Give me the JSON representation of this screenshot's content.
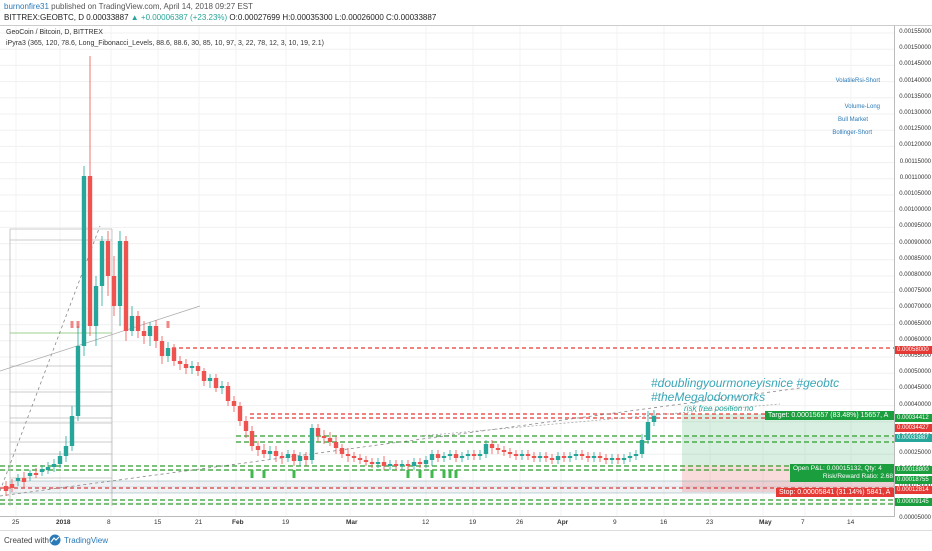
{
  "header": {
    "user": "burnonfire31",
    "published": "published on TradingView.com, April 14, 2018 09:27 EST",
    "symbol_line": "BITTREX:GEOBTC, D",
    "close": "0.00033887",
    "change": "▲ +0.00006387 (+23.23%)",
    "ohlc": "O:0.00027699 H:0.00035300 L:0.00026000 C:0.00033887"
  },
  "chart": {
    "title": "GeoCoin / Bitcoin, D, BITTREX",
    "indicator": "iPyra3 (365, 120, 78.6, Long_Fibonacci_Levels, 88.6, 88.6, 30, 85, 10, 97, 3, 22, 78, 12, 3, 10, 19, 2.1)",
    "legend": [
      "VolatileRsi-Short",
      "Volume-Long",
      "Bull Market",
      "Bollinger-Short"
    ],
    "hashtag1": "#doublingyourmoneyisnice #geobtc",
    "hashtag2": "#theMegalodonworks",
    "riskfree": "risk free position no",
    "target": "Target: 0.00015657 (83.48%) 15657, A",
    "pnl1": "Open P&L: 0.00015132, Qty: 4",
    "pnl2": "Risk/Reward Ratio: 2.68",
    "stop": "Stop: 0.00005841 (31.14%) 5841, A",
    "colors": {
      "up": "#26a69a",
      "down": "#ef5350",
      "accent": "#2a7ab8"
    }
  },
  "price_axis": {
    "ticks": [
      "0.00155000",
      "0.00150000",
      "0.00145000",
      "0.00140000",
      "0.00135000",
      "0.00130000",
      "0.00125000",
      "0.00120000",
      "0.00115000",
      "0.00110000",
      "0.00105000",
      "0.00100000",
      "0.00095000",
      "0.00090000",
      "0.00085000",
      "0.00080000",
      "0.00075000",
      "0.00070000",
      "0.00065000",
      "0.00060000",
      "0.00055000",
      "0.00050000",
      "0.00045000",
      "0.00040000",
      "0.00035000",
      "0.00030000",
      "0.00025000",
      "0.00020000",
      "0.00015000",
      "0.00010000",
      "0.00005000"
    ],
    "badges": [
      {
        "text": "0.00058000",
        "color": "#e53935"
      },
      {
        "text": "0.00034412",
        "color": "#1b9e3e"
      },
      {
        "text": "0.00034427",
        "color": "#e53935"
      },
      {
        "text": "0.00033887",
        "color": "#26a69a"
      },
      {
        "text": "0.00018800",
        "color": "#1b9e3e"
      },
      {
        "text": "0.00018755",
        "color": "#1b9e3e"
      },
      {
        "text": "0.00012814",
        "color": "#e53935"
      },
      {
        "text": "0.00009145",
        "color": "#1b9e3e"
      }
    ]
  },
  "time_axis": [
    "25",
    "2018",
    "8",
    "15",
    "21",
    "Feb",
    "19",
    "Mar",
    "12",
    "19",
    "26",
    "Apr",
    "9",
    "16",
    "23",
    "May",
    "7",
    "14"
  ],
  "footer": {
    "created": "Created with",
    "brand": "TradingView"
  }
}
